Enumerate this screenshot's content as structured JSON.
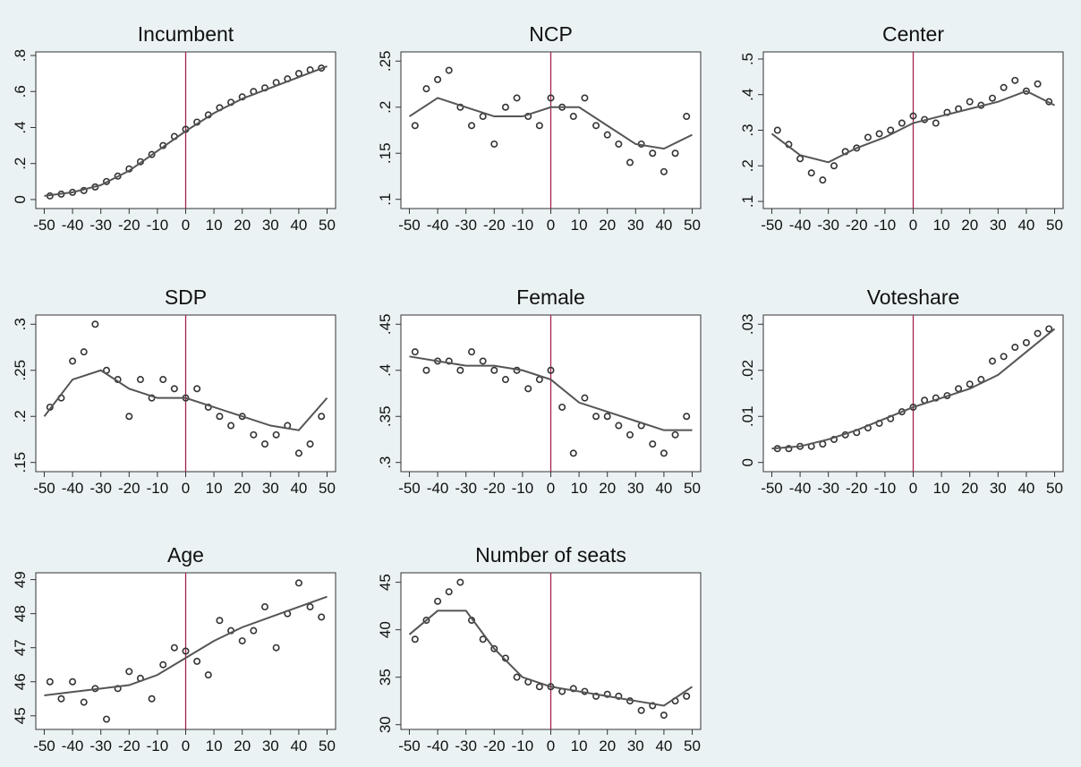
{
  "chart_data": [
    {
      "type": "scatter",
      "title": "Incumbent",
      "xlim": [
        -53,
        53
      ],
      "ylim": [
        -0.05,
        0.82
      ],
      "xticks": [
        -50,
        -40,
        -30,
        -20,
        -10,
        0,
        10,
        20,
        30,
        40,
        50
      ],
      "yticks": [
        0,
        {
          "value": 0.2,
          "label": ".2"
        },
        {
          "value": 0.4,
          "label": ".4"
        },
        {
          "value": 0.6,
          "label": ".6"
        },
        {
          "value": 0.8,
          "label": ".8"
        }
      ],
      "cutoff": 0,
      "cutoff_color": "#a3234e",
      "series": [
        {
          "kind": "points",
          "color": "#333333",
          "x": [
            -48,
            -44,
            -40,
            -36,
            -32,
            -28,
            -24,
            -20,
            -16,
            -12,
            -8,
            -4,
            0,
            4,
            8,
            12,
            16,
            20,
            24,
            28,
            32,
            36,
            40,
            44,
            48
          ],
          "values": [
            0.02,
            0.03,
            0.04,
            0.05,
            0.07,
            0.1,
            0.13,
            0.17,
            0.21,
            0.25,
            0.3,
            0.35,
            0.39,
            0.43,
            0.47,
            0.51,
            0.54,
            0.57,
            0.6,
            0.62,
            0.65,
            0.67,
            0.7,
            0.72,
            0.73
          ]
        },
        {
          "kind": "line",
          "color": "#555555",
          "x": [
            -50,
            -40,
            -30,
            -20,
            -10,
            0,
            10,
            20,
            30,
            40,
            50
          ],
          "values": [
            0.02,
            0.04,
            0.08,
            0.16,
            0.27,
            0.38,
            0.48,
            0.56,
            0.62,
            0.68,
            0.74
          ]
        }
      ]
    },
    {
      "type": "scatter",
      "title": "NCP",
      "xlim": [
        -53,
        53
      ],
      "ylim": [
        0.09,
        0.26
      ],
      "xticks": [
        -50,
        -40,
        -30,
        -20,
        -10,
        0,
        10,
        20,
        30,
        40,
        50
      ],
      "yticks": [
        {
          "value": 0.1,
          "label": ".1"
        },
        {
          "value": 0.15,
          "label": ".15"
        },
        {
          "value": 0.2,
          "label": ".2"
        },
        {
          "value": 0.25,
          "label": ".25"
        }
      ],
      "cutoff": 0,
      "cutoff_color": "#a3234e",
      "series": [
        {
          "kind": "points",
          "color": "#333333",
          "x": [
            -48,
            -44,
            -40,
            -36,
            -32,
            -28,
            -24,
            -20,
            -16,
            -12,
            -8,
            -4,
            0,
            4,
            8,
            12,
            16,
            20,
            24,
            28,
            32,
            36,
            40,
            44,
            48
          ],
          "values": [
            0.18,
            0.22,
            0.23,
            0.24,
            0.2,
            0.18,
            0.19,
            0.16,
            0.2,
            0.21,
            0.19,
            0.18,
            0.21,
            0.2,
            0.19,
            0.21,
            0.18,
            0.17,
            0.16,
            0.14,
            0.16,
            0.15,
            0.13,
            0.15,
            0.19
          ]
        },
        {
          "kind": "line",
          "color": "#555555",
          "x": [
            -50,
            -40,
            -30,
            -20,
            -10,
            0,
            10,
            20,
            30,
            40,
            50
          ],
          "values": [
            0.19,
            0.21,
            0.2,
            0.19,
            0.19,
            0.2,
            0.2,
            0.18,
            0.16,
            0.155,
            0.17
          ]
        }
      ]
    },
    {
      "type": "scatter",
      "title": "Center",
      "xlim": [
        -53,
        53
      ],
      "ylim": [
        0.08,
        0.52
      ],
      "xticks": [
        -50,
        -40,
        -30,
        -20,
        -10,
        0,
        10,
        20,
        30,
        40,
        50
      ],
      "yticks": [
        {
          "value": 0.1,
          "label": ".1"
        },
        {
          "value": 0.2,
          "label": ".2"
        },
        {
          "value": 0.3,
          "label": ".3"
        },
        {
          "value": 0.4,
          "label": ".4"
        },
        {
          "value": 0.5,
          "label": ".5"
        }
      ],
      "cutoff": 0,
      "cutoff_color": "#a3234e",
      "series": [
        {
          "kind": "points",
          "color": "#333333",
          "x": [
            -48,
            -44,
            -40,
            -36,
            -32,
            -28,
            -24,
            -20,
            -16,
            -12,
            -8,
            -4,
            0,
            4,
            8,
            12,
            16,
            20,
            24,
            28,
            32,
            36,
            40,
            44,
            48
          ],
          "values": [
            0.3,
            0.26,
            0.22,
            0.18,
            0.16,
            0.2,
            0.24,
            0.25,
            0.28,
            0.29,
            0.3,
            0.32,
            0.34,
            0.33,
            0.32,
            0.35,
            0.36,
            0.38,
            0.37,
            0.39,
            0.42,
            0.44,
            0.41,
            0.43,
            0.38
          ]
        },
        {
          "kind": "line",
          "color": "#555555",
          "x": [
            -50,
            -40,
            -30,
            -20,
            -10,
            0,
            10,
            20,
            30,
            40,
            50
          ],
          "values": [
            0.29,
            0.23,
            0.21,
            0.25,
            0.28,
            0.32,
            0.34,
            0.36,
            0.38,
            0.41,
            0.37
          ]
        }
      ]
    },
    {
      "type": "scatter",
      "title": "SDP",
      "xlim": [
        -53,
        53
      ],
      "ylim": [
        0.14,
        0.31
      ],
      "xticks": [
        -50,
        -40,
        -30,
        -20,
        -10,
        0,
        10,
        20,
        30,
        40,
        50
      ],
      "yticks": [
        {
          "value": 0.15,
          "label": ".15"
        },
        {
          "value": 0.2,
          "label": ".2"
        },
        {
          "value": 0.25,
          "label": ".25"
        },
        {
          "value": 0.3,
          "label": ".3"
        }
      ],
      "cutoff": 0,
      "cutoff_color": "#a3234e",
      "series": [
        {
          "kind": "points",
          "color": "#333333",
          "x": [
            -48,
            -44,
            -40,
            -36,
            -32,
            -28,
            -24,
            -20,
            -16,
            -12,
            -8,
            -4,
            0,
            4,
            8,
            12,
            16,
            20,
            24,
            28,
            32,
            36,
            40,
            44,
            48
          ],
          "values": [
            0.21,
            0.22,
            0.26,
            0.27,
            0.3,
            0.25,
            0.24,
            0.2,
            0.24,
            0.22,
            0.24,
            0.23,
            0.22,
            0.23,
            0.21,
            0.2,
            0.19,
            0.2,
            0.18,
            0.17,
            0.18,
            0.19,
            0.16,
            0.17,
            0.2
          ]
        },
        {
          "kind": "line",
          "color": "#555555",
          "x": [
            -50,
            -40,
            -30,
            -20,
            -10,
            0,
            10,
            20,
            30,
            40,
            50
          ],
          "values": [
            0.2,
            0.24,
            0.25,
            0.23,
            0.22,
            0.22,
            0.21,
            0.2,
            0.19,
            0.185,
            0.22
          ]
        }
      ]
    },
    {
      "type": "scatter",
      "title": "Female",
      "xlim": [
        -53,
        53
      ],
      "ylim": [
        0.29,
        0.46
      ],
      "xticks": [
        -50,
        -40,
        -30,
        -20,
        -10,
        0,
        10,
        20,
        30,
        40,
        50
      ],
      "yticks": [
        {
          "value": 0.3,
          "label": ".3"
        },
        {
          "value": 0.35,
          "label": ".35"
        },
        {
          "value": 0.4,
          "label": ".4"
        },
        {
          "value": 0.45,
          "label": ".45"
        }
      ],
      "cutoff": 0,
      "cutoff_color": "#a3234e",
      "series": [
        {
          "kind": "points",
          "color": "#333333",
          "x": [
            -48,
            -44,
            -40,
            -36,
            -32,
            -28,
            -24,
            -20,
            -16,
            -12,
            -8,
            -4,
            0,
            4,
            8,
            12,
            16,
            20,
            24,
            28,
            32,
            36,
            40,
            44,
            48
          ],
          "values": [
            0.42,
            0.4,
            0.41,
            0.41,
            0.4,
            0.42,
            0.41,
            0.4,
            0.39,
            0.4,
            0.38,
            0.39,
            0.4,
            0.36,
            0.31,
            0.37,
            0.35,
            0.35,
            0.34,
            0.33,
            0.34,
            0.32,
            0.31,
            0.33,
            0.35
          ]
        },
        {
          "kind": "line",
          "color": "#555555",
          "x": [
            -50,
            -40,
            -30,
            -20,
            -10,
            0,
            10,
            20,
            30,
            40,
            50
          ],
          "values": [
            0.415,
            0.41,
            0.405,
            0.405,
            0.4,
            0.39,
            0.365,
            0.355,
            0.345,
            0.335,
            0.335
          ]
        }
      ]
    },
    {
      "type": "scatter",
      "title": "Voteshare",
      "xlim": [
        -53,
        53
      ],
      "ylim": [
        -0.002,
        0.032
      ],
      "xticks": [
        -50,
        -40,
        -30,
        -20,
        -10,
        0,
        10,
        20,
        30,
        40,
        50
      ],
      "yticks": [
        0,
        {
          "value": 0.01,
          "label": ".01"
        },
        {
          "value": 0.02,
          "label": ".02"
        },
        {
          "value": 0.03,
          "label": ".03"
        }
      ],
      "cutoff": 0,
      "cutoff_color": "#a3234e",
      "series": [
        {
          "kind": "points",
          "color": "#333333",
          "x": [
            -48,
            -44,
            -40,
            -36,
            -32,
            -28,
            -24,
            -20,
            -16,
            -12,
            -8,
            -4,
            0,
            4,
            8,
            12,
            16,
            20,
            24,
            28,
            32,
            36,
            40,
            44,
            48
          ],
          "values": [
            0.003,
            0.003,
            0.0035,
            0.0035,
            0.004,
            0.005,
            0.006,
            0.0065,
            0.0075,
            0.0085,
            0.0095,
            0.011,
            0.012,
            0.0135,
            0.014,
            0.0145,
            0.016,
            0.017,
            0.018,
            0.022,
            0.023,
            0.025,
            0.026,
            0.028,
            0.029
          ]
        },
        {
          "kind": "line",
          "color": "#555555",
          "x": [
            -50,
            -40,
            -30,
            -20,
            -10,
            0,
            10,
            20,
            30,
            40,
            50
          ],
          "values": [
            0.003,
            0.0035,
            0.005,
            0.007,
            0.0095,
            0.012,
            0.014,
            0.016,
            0.019,
            0.024,
            0.029
          ]
        }
      ]
    },
    {
      "type": "scatter",
      "title": "Age",
      "xlim": [
        -53,
        53
      ],
      "ylim": [
        44.6,
        49.2
      ],
      "xticks": [
        -50,
        -40,
        -30,
        -20,
        -10,
        0,
        10,
        20,
        30,
        40,
        50
      ],
      "yticks": [
        45,
        46,
        47,
        48,
        49
      ],
      "cutoff": 0,
      "cutoff_color": "#a3234e",
      "series": [
        {
          "kind": "points",
          "color": "#333333",
          "x": [
            -48,
            -44,
            -40,
            -36,
            -32,
            -28,
            -24,
            -20,
            -16,
            -12,
            -8,
            -4,
            0,
            4,
            8,
            12,
            16,
            20,
            24,
            28,
            32,
            36,
            40,
            44,
            48
          ],
          "values": [
            46,
            45.5,
            46,
            45.4,
            45.8,
            44.9,
            45.8,
            46.3,
            46.1,
            45.5,
            46.5,
            47,
            46.9,
            46.6,
            46.2,
            47.8,
            47.5,
            47.2,
            47.5,
            48.2,
            47,
            48,
            48.9,
            48.2,
            47.9
          ]
        },
        {
          "kind": "line",
          "color": "#555555",
          "x": [
            -50,
            -40,
            -30,
            -20,
            -10,
            0,
            10,
            20,
            30,
            40,
            50
          ],
          "values": [
            45.6,
            45.7,
            45.8,
            45.9,
            46.2,
            46.7,
            47.2,
            47.6,
            47.9,
            48.2,
            48.5
          ]
        }
      ]
    },
    {
      "type": "scatter",
      "title": "Number of seats",
      "xlim": [
        -53,
        53
      ],
      "ylim": [
        29.5,
        46
      ],
      "xticks": [
        -50,
        -40,
        -30,
        -20,
        -10,
        0,
        10,
        20,
        30,
        40,
        50
      ],
      "yticks": [
        30,
        35,
        40,
        45
      ],
      "cutoff": 0,
      "cutoff_color": "#a3234e",
      "series": [
        {
          "kind": "points",
          "color": "#333333",
          "x": [
            -48,
            -44,
            -40,
            -36,
            -32,
            -28,
            -24,
            -20,
            -16,
            -12,
            -8,
            -4,
            0,
            4,
            8,
            12,
            16,
            20,
            24,
            28,
            32,
            36,
            40,
            44,
            48
          ],
          "values": [
            39,
            41,
            43,
            44,
            45,
            41,
            39,
            38,
            37,
            35,
            34.5,
            34,
            34,
            33.5,
            33.8,
            33.5,
            33,
            33.2,
            33,
            32.5,
            31.5,
            32,
            31,
            32.5,
            33
          ]
        },
        {
          "kind": "line",
          "color": "#555555",
          "x": [
            -50,
            -40,
            -30,
            -20,
            -10,
            0,
            10,
            20,
            30,
            40,
            50
          ],
          "values": [
            39.5,
            42,
            42,
            38,
            35,
            34,
            33.5,
            33,
            32.5,
            32,
            34
          ]
        }
      ]
    }
  ]
}
